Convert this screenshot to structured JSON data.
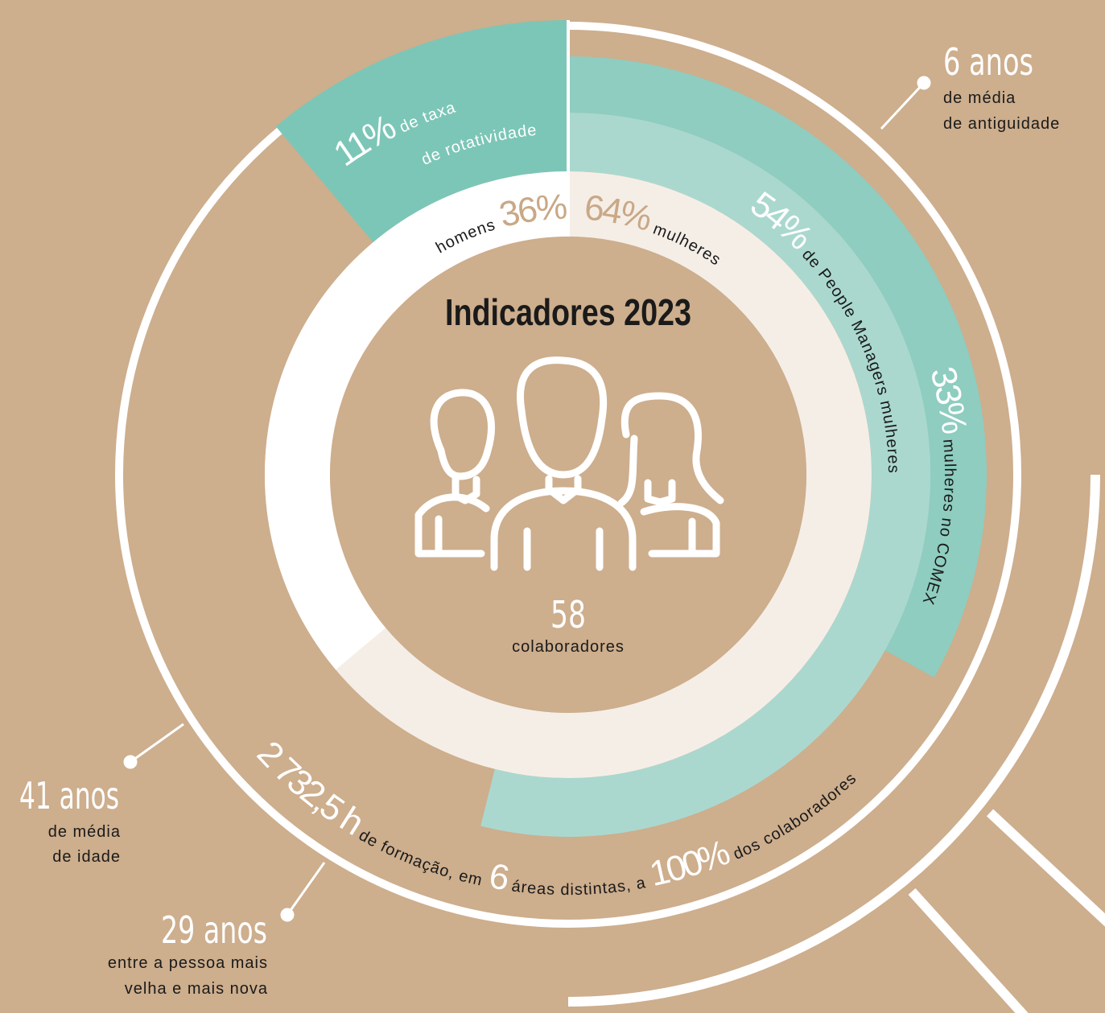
{
  "title": "Indicadores 2023",
  "center": {
    "value": "58",
    "label": "colaboradores"
  },
  "gender": {
    "men": {
      "label": "homens",
      "value": "36%"
    },
    "women": {
      "value": "64%",
      "label": "mulheres"
    }
  },
  "rotation": {
    "value": "11%",
    "label_1": "de taxa",
    "label_2": "de rotatividade"
  },
  "managers": {
    "value": "54%",
    "label": "de People Managers mulheres"
  },
  "comex": {
    "value": "33%",
    "label": "mulheres no COMEX"
  },
  "training": {
    "hours": "2 732,5 h",
    "text_1": "de formação, em",
    "areas": "6",
    "text_2": "áreas distintas, a",
    "share": "100%",
    "text_3": "dos colaboradores"
  },
  "seniority": {
    "value": "6 anos",
    "line_1": "de média",
    "line_2": "de antiguidade"
  },
  "age": {
    "value": "41 anos",
    "line_1": "de média",
    "line_2": "de idade"
  },
  "age_gap": {
    "value": "29 anos",
    "line_1": "entre a pessoa mais",
    "line_2": "velha e mais nova"
  }
}
